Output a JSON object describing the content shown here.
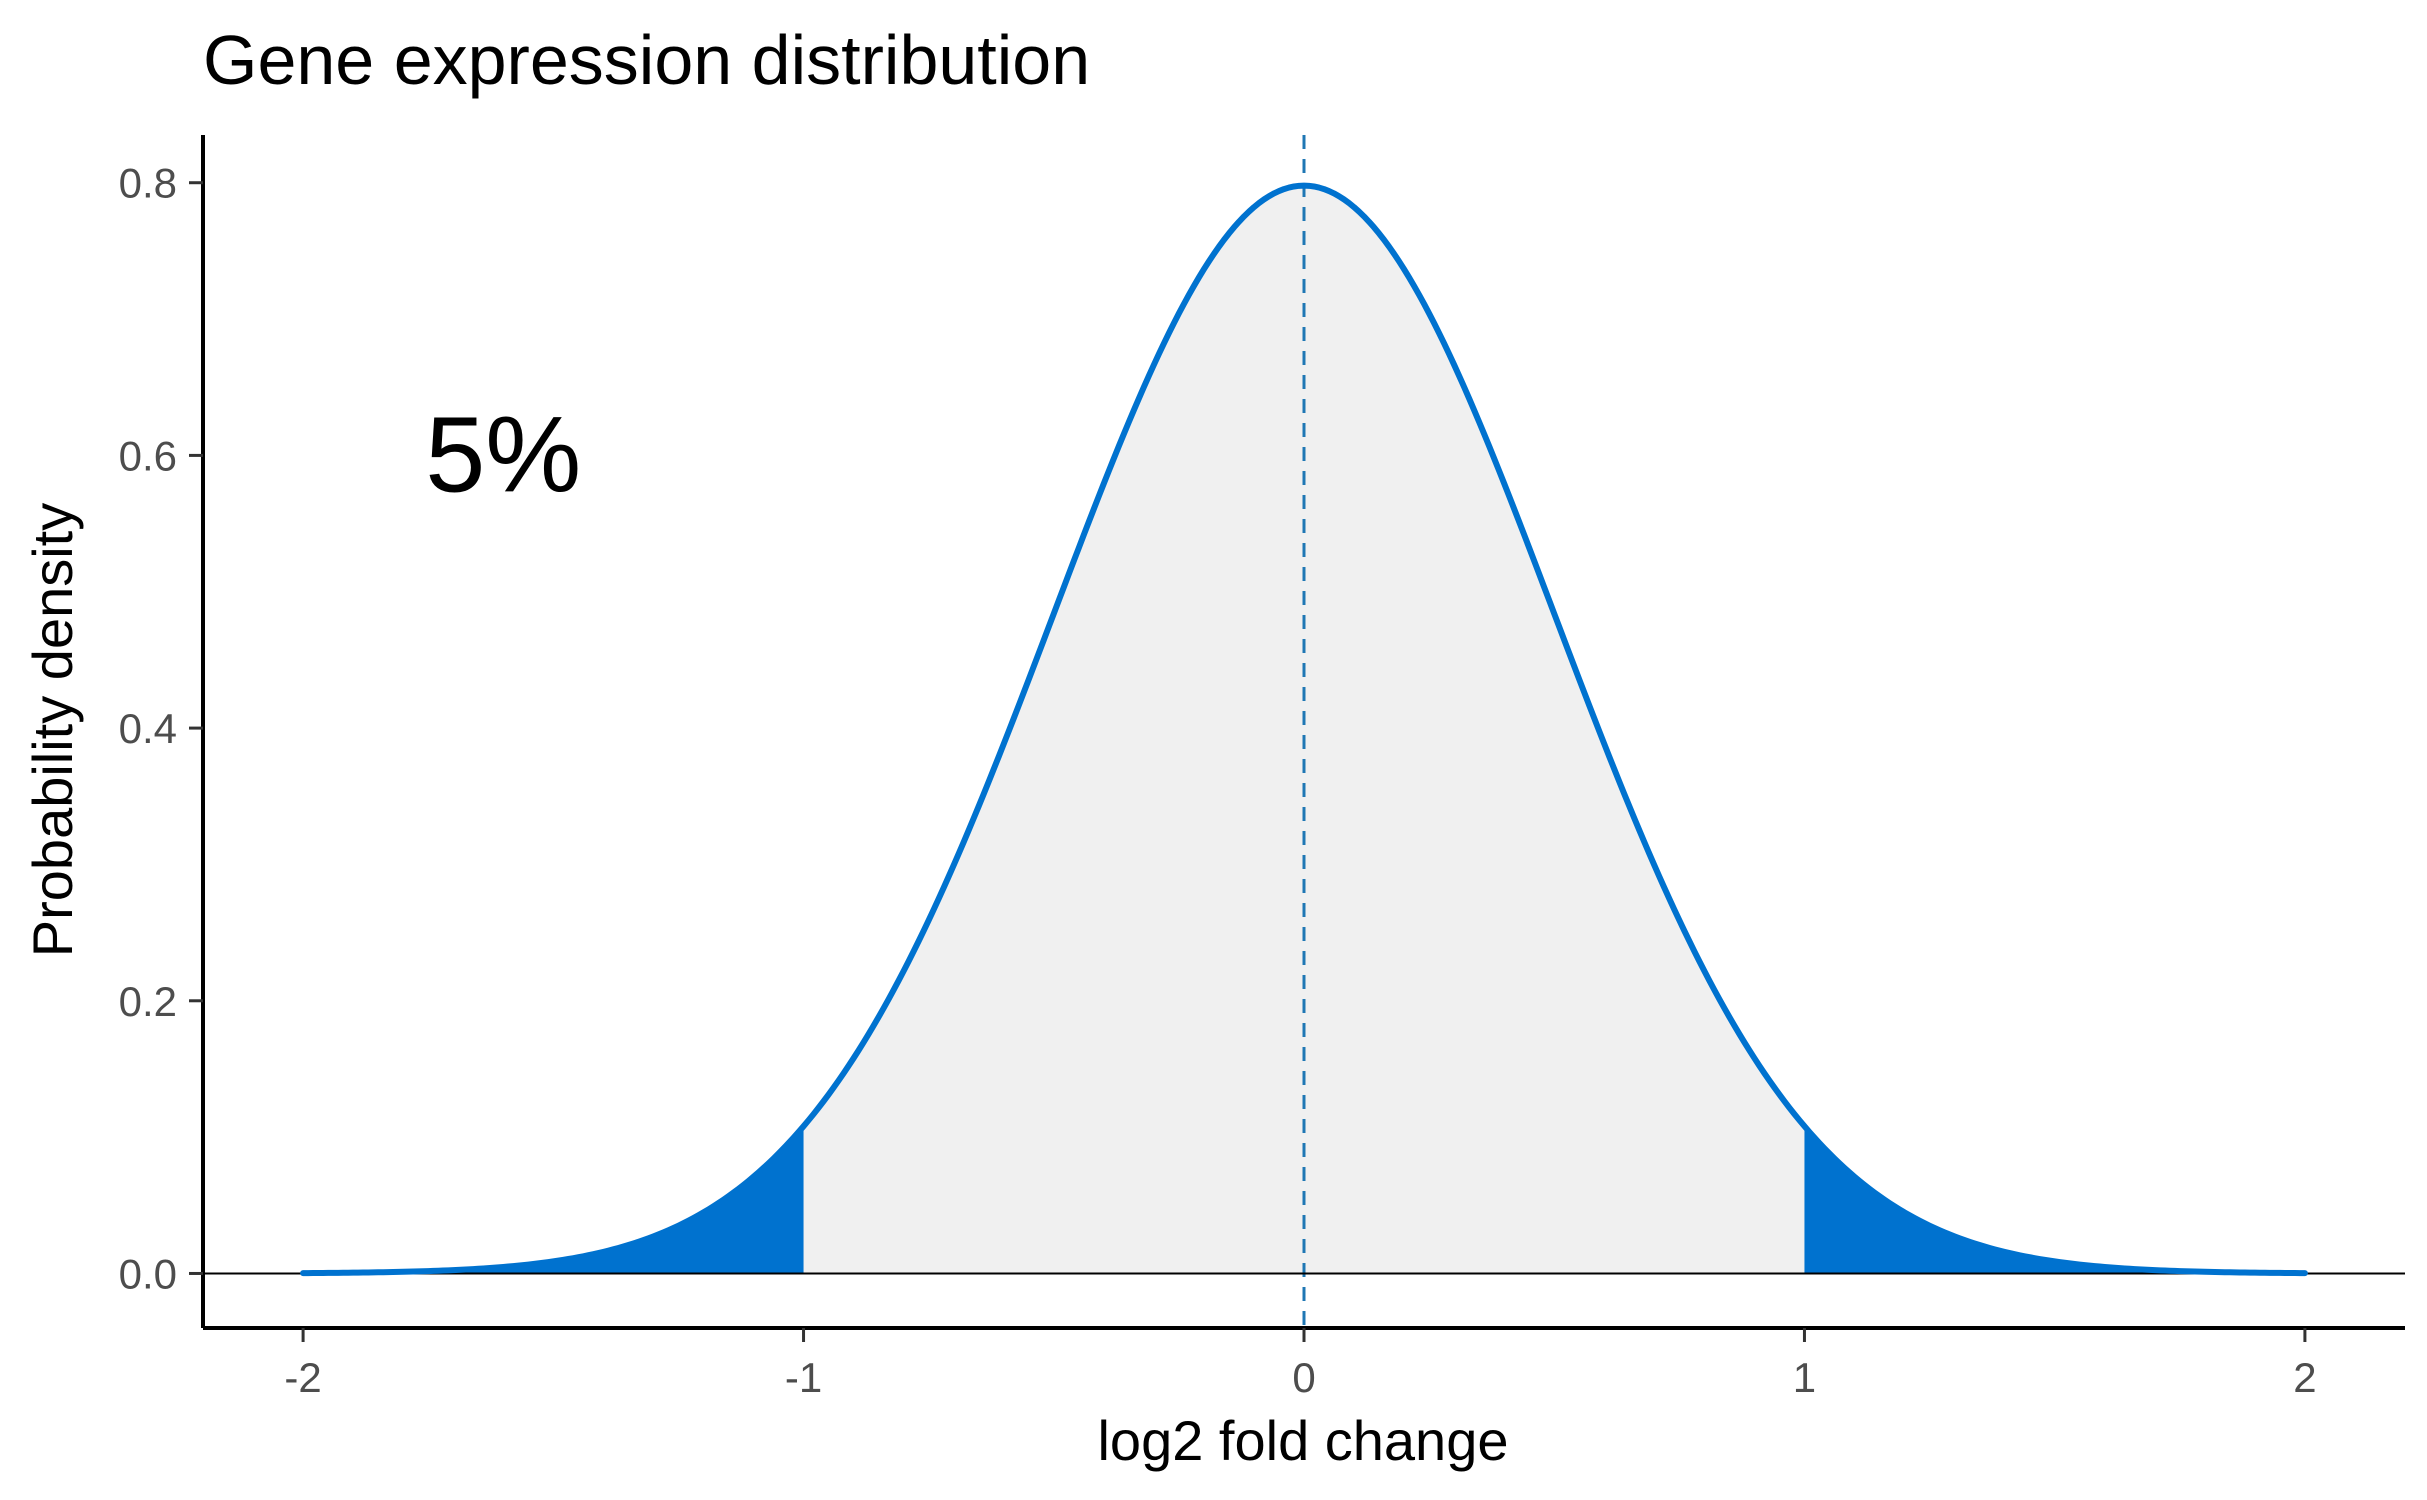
{
  "chart_data": {
    "type": "area",
    "title": "Gene expression distribution",
    "xlabel": "log2 fold change",
    "ylabel": "Probability density",
    "xlim": [
      -2.2,
      2.2
    ],
    "ylim": [
      -0.04,
      0.835
    ],
    "x_ticks": [
      -2,
      -1,
      0,
      1,
      2
    ],
    "x_tick_labels": [
      "-2",
      "-1",
      "0",
      "1",
      "2"
    ],
    "y_ticks": [
      0.0,
      0.2,
      0.4,
      0.6,
      0.8
    ],
    "y_tick_labels": [
      "0.0",
      "0.2",
      "0.4",
      "0.6",
      "0.8"
    ],
    "series": [
      {
        "distribution": "normal",
        "mean": 0,
        "sd": 0.5,
        "x_range": [
          -2,
          2
        ],
        "peak_density": 0.798,
        "shaded_tails": [
          [
            -2,
            -1
          ],
          [
            1,
            2
          ]
        ],
        "central_fill_range": [
          -1,
          1
        ]
      }
    ],
    "reference_lines": [
      {
        "orientation": "vertical",
        "x": 0,
        "style": "dashed"
      },
      {
        "orientation": "horizontal",
        "y": 0,
        "style": "solid"
      }
    ],
    "annotations": [
      {
        "text": "5%",
        "x": -1.6,
        "y": 0.6
      }
    ],
    "colors": {
      "curve": "#0072CF",
      "tail_fill": "#0072CF",
      "center_fill": "#F0F0F0",
      "dashed_line": "#1F77B4",
      "axis": "#000000",
      "tick_text": "#4D4D4D"
    },
    "grid": false,
    "legend": "none"
  }
}
